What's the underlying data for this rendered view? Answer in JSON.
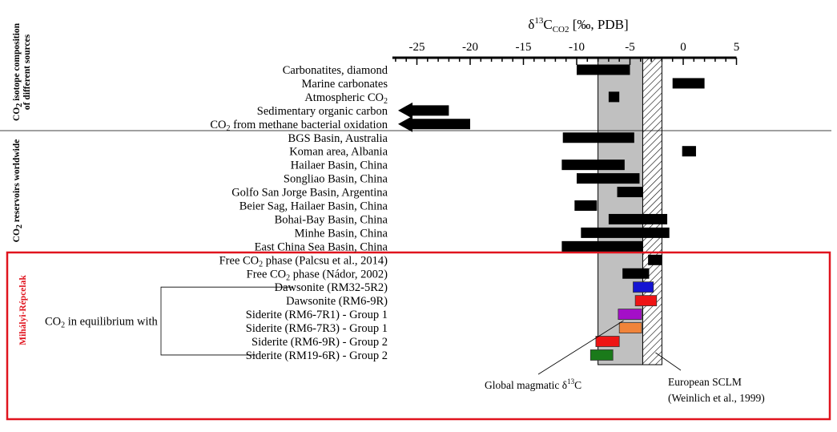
{
  "chart_data": {
    "type": "bar",
    "orientation": "horizontal-range",
    "x_axis": {
      "title_parts": [
        "δ",
        "13",
        "C",
        "CO2",
        " [‰, PDB]"
      ],
      "ticks": [
        -25,
        -20,
        -15,
        -10,
        -5,
        0,
        5
      ],
      "tick_labels": [
        "-25",
        "-20",
        "-15",
        "-10",
        "-5",
        "0",
        "5"
      ],
      "range": [
        -27,
        5
      ],
      "position": "top"
    },
    "groups": [
      {
        "label_lines": [
          "CO2 isotope composition",
          "of different sources"
        ],
        "label_sub": "CO2"
      },
      {
        "label_lines": [
          "CO2 reservoirs worldwide"
        ],
        "label_sub": "CO2"
      },
      {
        "label_lines": [
          "Mihályi-Répcelak"
        ],
        "color": "#e0141e"
      }
    ],
    "rows": [
      {
        "label": "Carbonatites, diamond",
        "min": -10,
        "max": -5,
        "color": "#000000"
      },
      {
        "label": "Marine carbonates",
        "min": -1,
        "max": 2,
        "color": "#000000"
      },
      {
        "label": "Atmospheric CO2",
        "min": -7,
        "max": -6,
        "color": "#000000"
      },
      {
        "label": "Sedimentary organic carbon",
        "min": -27,
        "max": -22,
        "color": "#000000",
        "arrow_left": true
      },
      {
        "label": "CO2 from methane bacterial oxidation",
        "min": -27,
        "max": -20,
        "color": "#000000",
        "arrow_left": true
      },
      {
        "label": "BGS Basin, Australia",
        "min": -11.3,
        "max": -4.6,
        "color": "#000000"
      },
      {
        "label": "Koman area, Albania",
        "min": -0.1,
        "max": 1.2,
        "color": "#000000"
      },
      {
        "label": "Hailaer Basin, China",
        "min": -11.4,
        "max": -5.5,
        "color": "#000000"
      },
      {
        "label": "Songliao Basin, China",
        "min": -10,
        "max": -4.1,
        "color": "#000000"
      },
      {
        "label": "Golfo San Jorge Basin, Argentina",
        "min": -6.2,
        "max": -3.8,
        "color": "#000000"
      },
      {
        "label": "Beier Sag, Hailaer Basin, China",
        "min": -10.2,
        "max": -8.1,
        "color": "#000000"
      },
      {
        "label": "Bohai-Bay Basin, China",
        "min": -7,
        "max": -1.5,
        "color": "#000000"
      },
      {
        "label": "Minhe Basin, China",
        "min": -9.6,
        "max": -1.3,
        "color": "#000000"
      },
      {
        "label": "East China Sea Basin, China",
        "min": -11.4,
        "max": -3.8,
        "color": "#000000"
      },
      {
        "label": "Free CO2  phase (Palcsu et al., 2014)",
        "min": -3.3,
        "max": -2,
        "color": "#000000"
      },
      {
        "label": "Free CO2  phase (Nádor, 2002)",
        "min": -5.7,
        "max": -3.2,
        "color": "#000000"
      },
      {
        "label": "Dawsonite (RM32-5R2)",
        "min": -4.7,
        "max": -2.8,
        "color": "#1414d2",
        "outlined": true
      },
      {
        "label": "Dawsonite (RM6-9R)",
        "min": -4.5,
        "max": -2.5,
        "color": "#ee1414",
        "outlined": true
      },
      {
        "label": "Siderite (RM6-7R1) - Group 1",
        "min": -6.1,
        "max": -3.9,
        "color": "#a40fc8",
        "outlined": true
      },
      {
        "label": "Siderite (RM6-7R3) - Group 1",
        "min": -6,
        "max": -3.9,
        "color": "#f0843a",
        "outlined": true
      },
      {
        "label": "Siderite (RM6-9R) - Group 2",
        "min": -8.2,
        "max": -6,
        "color": "#ee1414",
        "outlined": true
      },
      {
        "label": "Siderite (RM19-6R) - Group 2",
        "min": -8.7,
        "max": -6.6,
        "color": "#1a7a1a",
        "outlined": true
      }
    ],
    "bracket_label": "CO2 in equilibrium with",
    "bands": [
      {
        "name": "Global magmatic δ13C",
        "min": -8,
        "max": -3.8,
        "fill": "#c0c0c0"
      },
      {
        "name": "European SCLM",
        "min": -3.8,
        "max": -2,
        "fill": "hatched"
      }
    ],
    "annotations": {
      "magmatic": [
        "Global magmatic δ",
        "13",
        "C"
      ],
      "sclm_title": "European SCLM",
      "sclm_ref": "(Weinlich et al., 1999)"
    },
    "grid": false,
    "legend": "none"
  }
}
